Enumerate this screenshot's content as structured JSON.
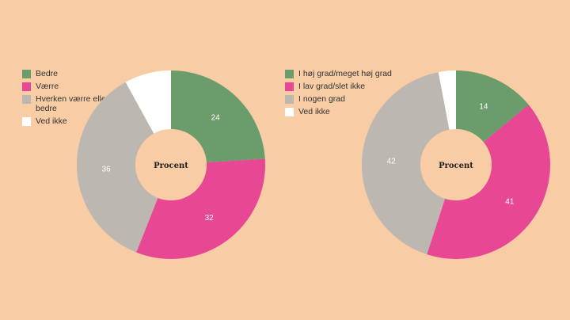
{
  "colors": {
    "background": "#f8cca4",
    "green": "#6a9c6c",
    "pink": "#e84793",
    "gray": "#bcb7b0",
    "white": "#ffffff"
  },
  "chart_data": [
    {
      "type": "pie",
      "center_label": "Procent",
      "series": [
        {
          "name": "Bedre",
          "value": 24,
          "color": "#6a9c6c",
          "label_color": "#ffffff",
          "show_label": true
        },
        {
          "name": "Værre",
          "value": 32,
          "color": "#e84793",
          "label_color": "#ffffff",
          "show_label": true
        },
        {
          "name": "Hverken værre eller bedre",
          "value": 36,
          "color": "#bcb7b0",
          "label_color": "#ffffff",
          "show_label": true
        },
        {
          "name": "Ved ikke",
          "value": 8,
          "color": "#ffffff",
          "label_color": "#555555",
          "show_label": false
        }
      ],
      "legend": "left"
    },
    {
      "type": "pie",
      "center_label": "Procent",
      "series": [
        {
          "name": "I høj grad/meget høj grad",
          "value": 14,
          "color": "#6a9c6c",
          "label_color": "#ffffff",
          "show_label": true
        },
        {
          "name": "I lav grad/slet ikke",
          "value": 41,
          "color": "#e84793",
          "label_color": "#ffffff",
          "show_label": true
        },
        {
          "name": "I nogen grad",
          "value": 42,
          "color": "#bcb7b0",
          "label_color": "#ffffff",
          "show_label": true
        },
        {
          "name": "Ved ikke",
          "value": 3,
          "color": "#ffffff",
          "label_color": "#555555",
          "show_label": false
        }
      ],
      "legend": "left"
    }
  ]
}
